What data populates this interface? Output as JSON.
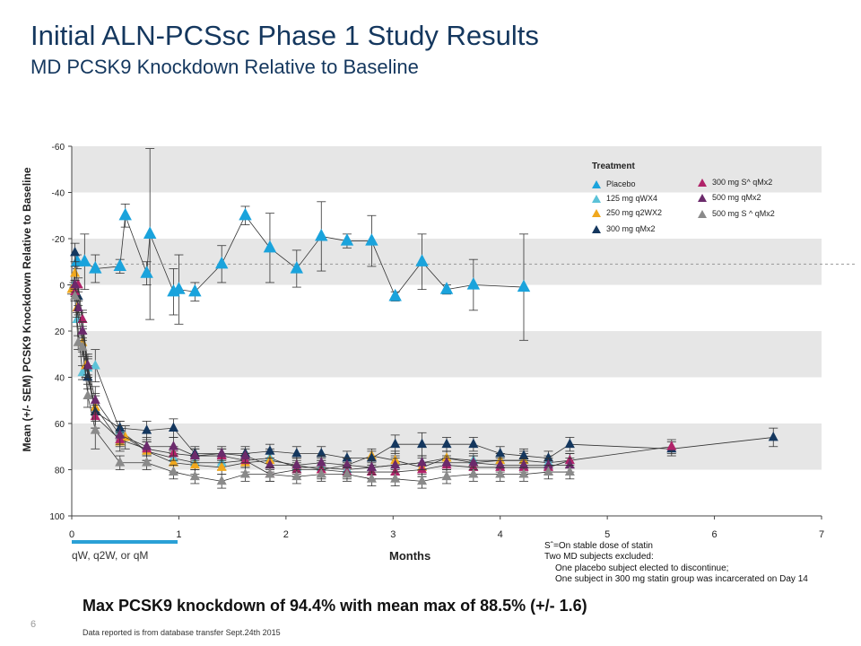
{
  "slide": {
    "title": "Initial ALN-PCSsc Phase 1 Study Results",
    "subtitle": "MD PCSK9 Knockdown Relative to Baseline",
    "headline": "Max PCSK9 knockdown of 94.4% with mean max of 88.5% (+/- 1.6)",
    "slide_number": "6",
    "source_note": "Data reported is from database transfer Sept.24th 2015",
    "dosing_note": "qW, q2W, or qM",
    "notes": [
      "Sˆ=On stable dose of statin",
      "Two MD subjects excluded:",
      "One placebo subject elected to discontinue;",
      "One subject in 300 mg statin group was incarcerated on Day 14"
    ]
  },
  "chart_data": {
    "type": "line",
    "xlabel": "Months",
    "ylabel": "Mean (+/- SEM) PCSK9 Knockdown Relative to Baseline",
    "xlim": [
      0,
      7
    ],
    "ylim": [
      -60,
      100
    ],
    "y_axis_inverted": true,
    "x_ticks": [
      0,
      1,
      2,
      3,
      4,
      5,
      6,
      7
    ],
    "y_ticks": [
      -60,
      -40,
      -20,
      0,
      20,
      40,
      60,
      80,
      100
    ],
    "y_tick_labels": [
      "-60",
      "-40",
      "-20",
      "0",
      "20",
      "40",
      "60",
      "80",
      "100"
    ],
    "reference_line": -9,
    "shaded_bands": [
      [
        -60,
        -40
      ],
      [
        -20,
        0
      ],
      [
        20,
        40
      ],
      [
        60,
        80
      ]
    ],
    "legend_title": "Treatment",
    "legend_placement": "top-right",
    "series": [
      {
        "name": "Placebo",
        "color": "#1aa3dc",
        "x": [
          0.05,
          0.12,
          0.22,
          0.45,
          0.5,
          0.7,
          0.73,
          0.95,
          1.0,
          1.15,
          1.4,
          1.62,
          1.85,
          2.1,
          2.33,
          2.57,
          2.8,
          3.02,
          3.27,
          3.5,
          3.75,
          4.22
        ],
        "y": [
          -10,
          -10,
          -7,
          -8,
          -30,
          -5,
          -22,
          3,
          2,
          3,
          -9,
          -30,
          -16,
          -7,
          -21,
          -19,
          -19,
          5,
          -10,
          2,
          0,
          1
        ],
        "err": [
          3,
          12,
          6,
          3,
          5,
          5,
          37,
          10,
          15,
          4,
          8,
          4,
          15,
          8,
          15,
          3,
          11,
          2,
          12,
          2,
          11,
          23
        ]
      },
      {
        "name": "125 mg qWX4",
        "color": "#5bc2d8",
        "x": [
          0.02,
          0.05,
          0.1,
          0.15,
          0.22,
          0.45,
          0.7,
          0.95,
          1.15,
          1.4,
          1.62,
          1.85,
          2.1,
          2.33,
          2.57,
          2.8,
          3.02,
          3.27,
          3.5,
          3.75,
          4.0,
          4.22,
          4.45,
          4.65
        ],
        "y": [
          0,
          15,
          38,
          36,
          35,
          63,
          72,
          75,
          77,
          77,
          76,
          75,
          79,
          79,
          80,
          79,
          78,
          77,
          75,
          76,
          76,
          76,
          77,
          76
        ],
        "err": [
          1,
          3,
          3,
          4,
          7,
          4,
          4,
          3,
          3,
          3,
          3,
          4,
          4,
          4,
          3,
          3,
          4,
          3,
          3,
          3,
          3,
          3,
          3,
          3
        ]
      },
      {
        "name": "250 mg q2WX2",
        "color": "#f0a81e",
        "x": [
          0.0,
          0.03,
          0.05,
          0.1,
          0.13,
          0.22,
          0.45,
          0.5,
          0.7,
          0.95,
          1.15,
          1.4,
          1.62,
          1.85,
          2.1,
          2.33,
          2.57,
          2.8,
          3.02,
          3.27,
          3.5,
          3.75,
          4.0,
          4.22
        ],
        "y": [
          2,
          -5,
          10,
          25,
          35,
          53,
          68,
          66,
          72,
          77,
          78,
          79,
          77,
          76,
          78,
          80,
          78,
          74,
          76,
          79,
          75,
          77,
          76,
          76
        ],
        "err": [
          2,
          3,
          4,
          4,
          5,
          6,
          4,
          5,
          4,
          4,
          4,
          3,
          4,
          4,
          4,
          4,
          3,
          3,
          4,
          4,
          3,
          3,
          3,
          4
        ]
      },
      {
        "name": "300 mg qMx2",
        "color": "#14375e",
        "x": [
          0.03,
          0.06,
          0.1,
          0.15,
          0.22,
          0.45,
          0.7,
          0.95,
          1.15,
          1.4,
          1.62,
          1.85,
          2.1,
          2.33,
          2.57,
          2.8,
          3.02,
          3.27,
          3.5,
          3.75,
          4.0,
          4.22,
          4.45,
          4.65,
          5.6,
          6.55
        ],
        "y": [
          -14,
          5,
          15,
          40,
          55,
          62,
          63,
          62,
          73,
          73,
          73,
          72,
          73,
          73,
          75,
          75,
          69,
          69,
          69,
          69,
          73,
          74,
          75,
          69,
          71,
          66
        ],
        "err": [
          4,
          4,
          3,
          5,
          7,
          3,
          4,
          4,
          3,
          2,
          3,
          3,
          3,
          3,
          3,
          3,
          4,
          5,
          3,
          3,
          3,
          3,
          3,
          3,
          3,
          4
        ]
      },
      {
        "name": "300 mg S^ qMx2",
        "color": "#b02369",
        "x": [
          0.03,
          0.06,
          0.1,
          0.15,
          0.22,
          0.45,
          0.7,
          0.95,
          1.15,
          1.4,
          1.62,
          1.85,
          2.1,
          2.33,
          2.57,
          2.8,
          3.02,
          3.27,
          3.5,
          3.75,
          4.0,
          4.22,
          4.45,
          4.65,
          5.6
        ],
        "y": [
          3,
          0,
          15,
          35,
          57,
          67,
          71,
          73,
          74,
          74,
          76,
          82,
          80,
          80,
          81,
          81,
          81,
          80,
          78,
          79,
          79,
          79,
          79,
          76,
          70
        ],
        "err": [
          2,
          3,
          4,
          4,
          5,
          3,
          3,
          3,
          3,
          3,
          3,
          3,
          3,
          3,
          3,
          3,
          3,
          3,
          3,
          3,
          3,
          3,
          3,
          3,
          3
        ]
      },
      {
        "name": "500 mg qMx2",
        "color": "#6b2a6b",
        "x": [
          0.03,
          0.06,
          0.1,
          0.15,
          0.22,
          0.45,
          0.7,
          0.95,
          1.15,
          1.4,
          1.62,
          1.85,
          2.1,
          2.33,
          2.57,
          2.8,
          3.02,
          3.27,
          3.5,
          3.75,
          4.0,
          4.22,
          4.45,
          4.65
        ],
        "y": [
          0,
          10,
          20,
          35,
          50,
          65,
          70,
          70,
          74,
          73,
          74,
          78,
          78,
          77,
          78,
          79,
          78,
          77,
          77,
          77,
          78,
          78,
          78,
          78
        ],
        "err": [
          2,
          3,
          4,
          5,
          6,
          4,
          4,
          4,
          3,
          3,
          3,
          3,
          3,
          3,
          3,
          3,
          3,
          3,
          3,
          3,
          3,
          3,
          3,
          3
        ]
      },
      {
        "name": "500 mg S ^ qMx2",
        "color": "#8a8a8a",
        "x": [
          0.03,
          0.06,
          0.1,
          0.15,
          0.22,
          0.45,
          0.7,
          0.95,
          1.15,
          1.4,
          1.62,
          1.85,
          2.1,
          2.33,
          2.57,
          2.8,
          3.02,
          3.27,
          3.5,
          3.75,
          4.0,
          4.22,
          4.45,
          4.65
        ],
        "y": [
          5,
          25,
          27,
          48,
          63,
          77,
          77,
          81,
          83,
          85,
          82,
          82,
          83,
          82,
          82,
          84,
          84,
          85,
          83,
          82,
          82,
          82,
          81,
          81
        ],
        "err": [
          2,
          3,
          4,
          5,
          8,
          3,
          3,
          3,
          3,
          3,
          3,
          3,
          3,
          3,
          3,
          3,
          3,
          3,
          3,
          3,
          3,
          3,
          3,
          3
        ]
      }
    ]
  }
}
